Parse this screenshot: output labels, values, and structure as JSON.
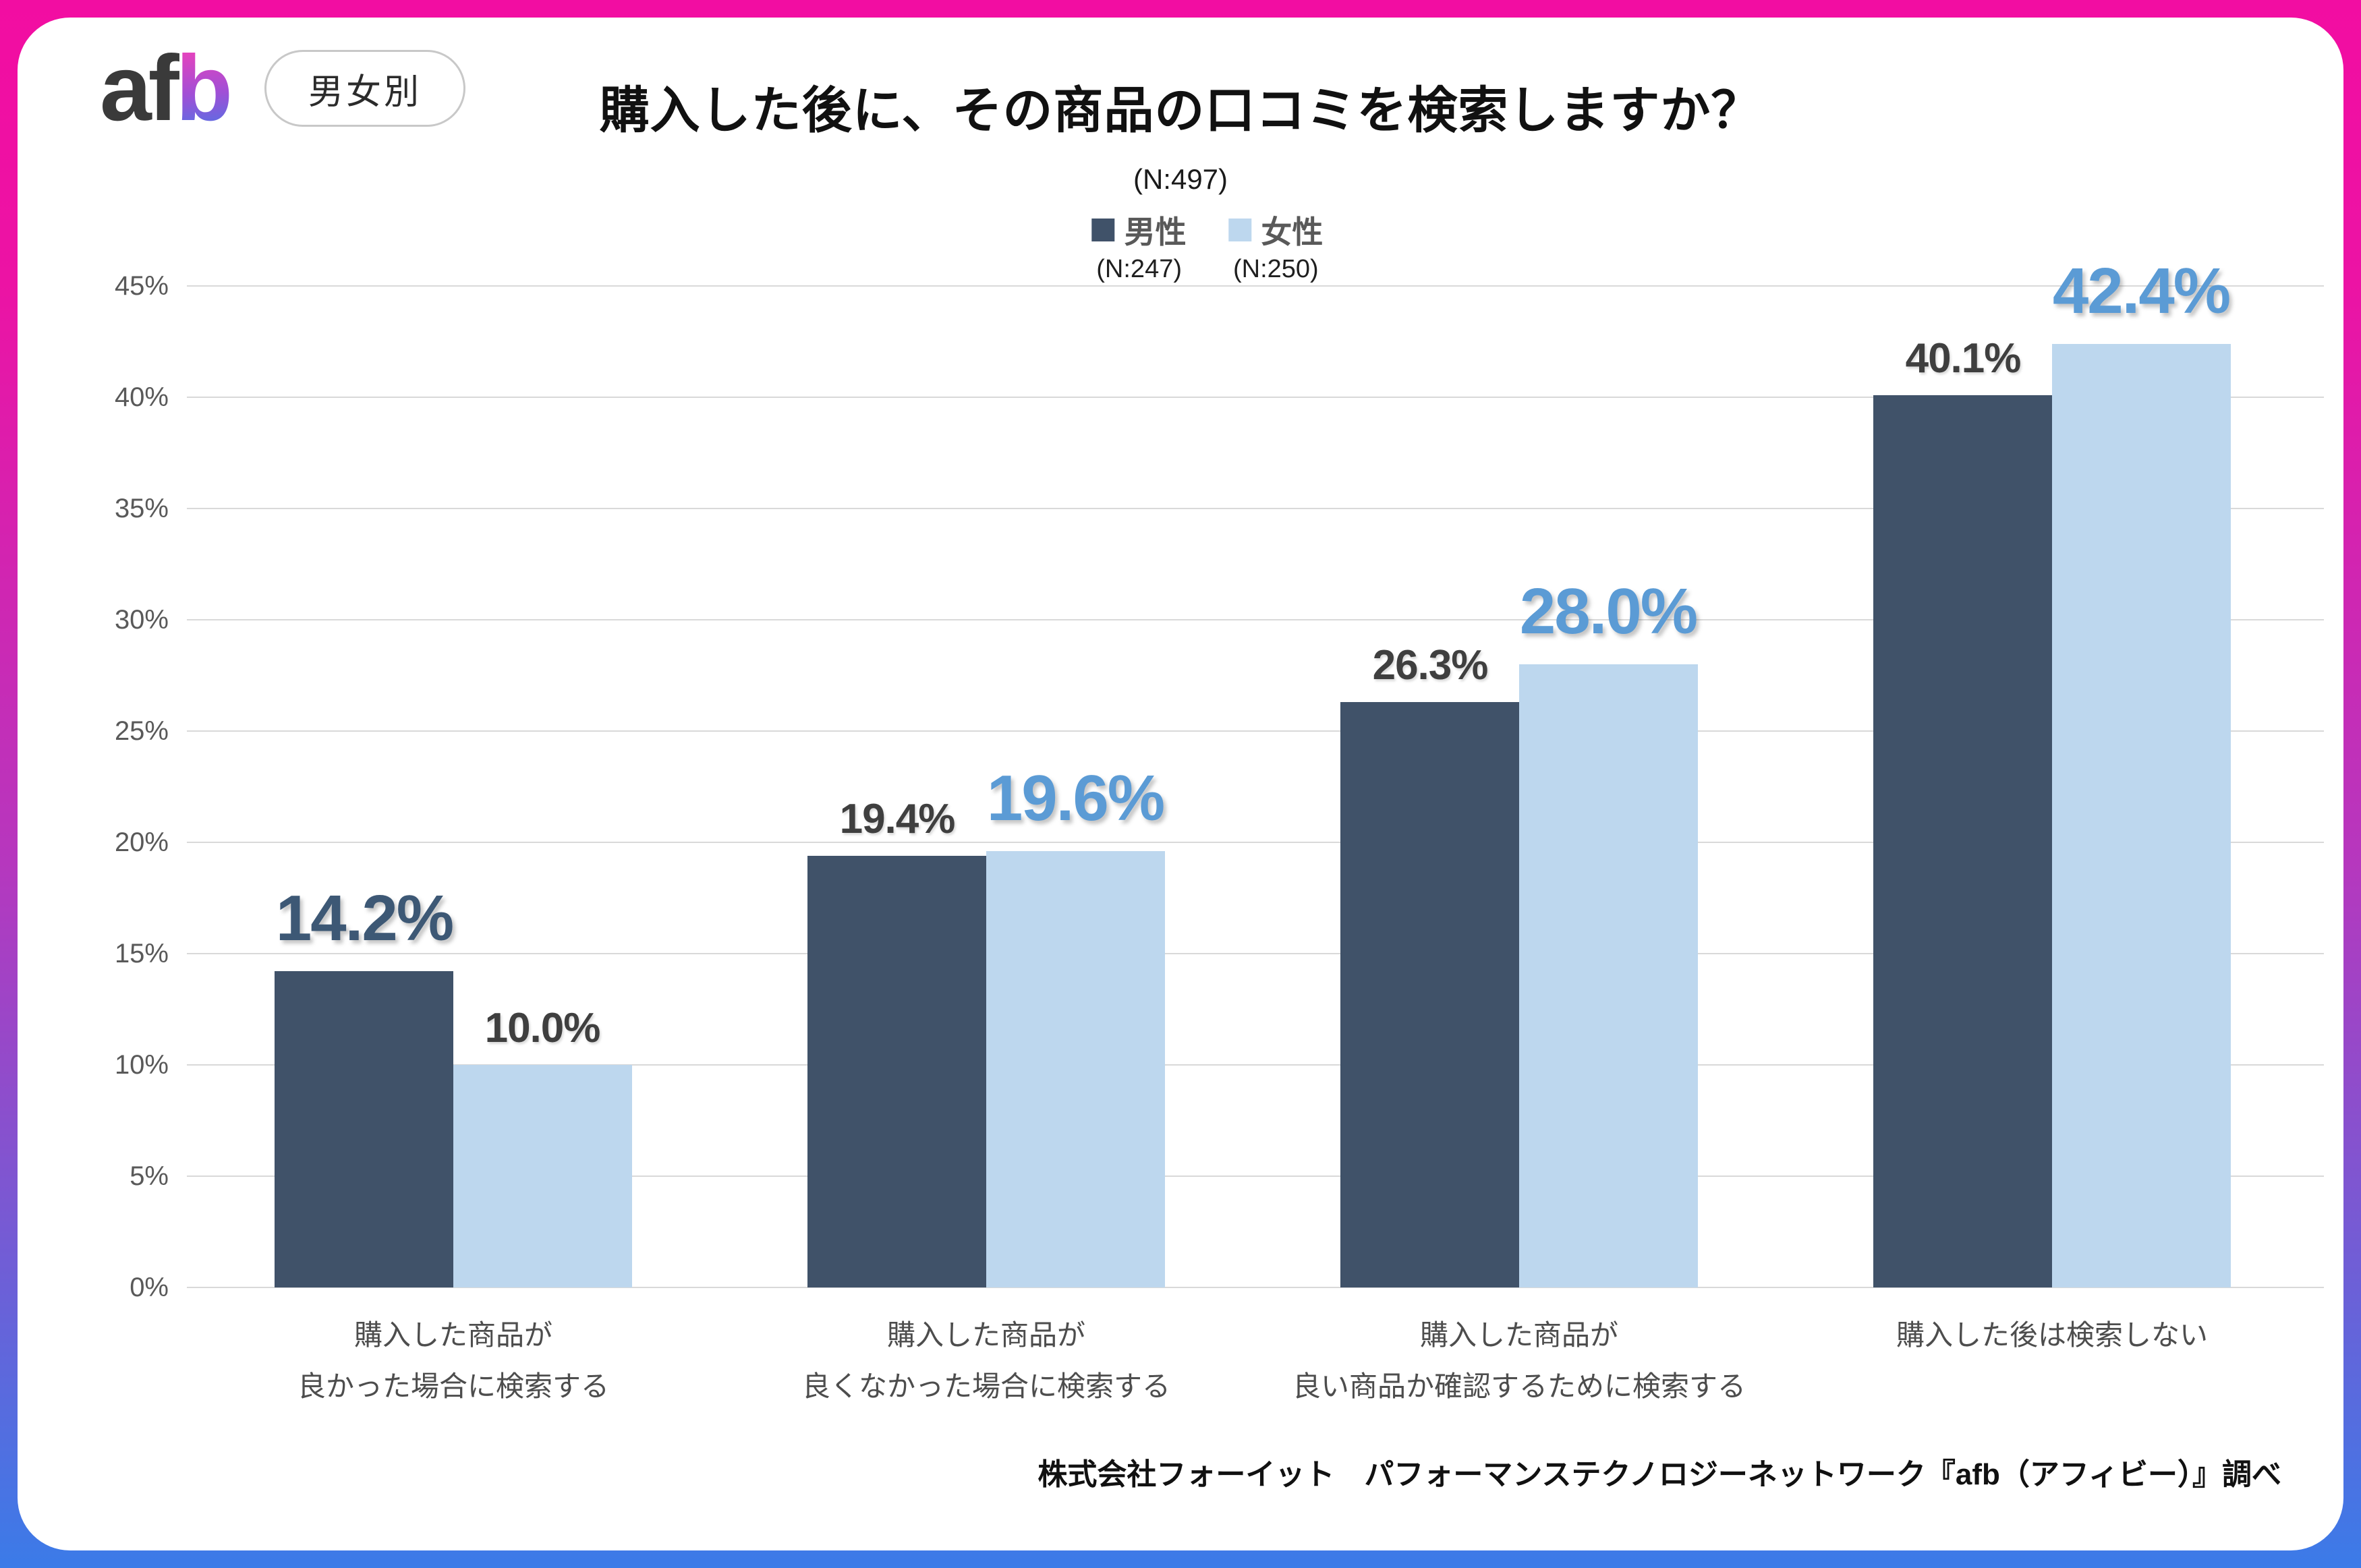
{
  "brand": {
    "logo_text_dark": "af",
    "logo_text_accent": "b"
  },
  "badge_label": "男女別",
  "header": {
    "title": "購入した後に、その商品の口コミを検索しますか？",
    "sample_label": "(N:497)"
  },
  "legend": {
    "male": {
      "label": "男性",
      "n_label": "(N:247)"
    },
    "female": {
      "label": "女性",
      "n_label": "(N:250)"
    }
  },
  "colors": {
    "male_bar": "#405269",
    "female_bar": "#BDD7EE",
    "male_value_emph": "#3D5875",
    "female_value_emph": "#5B9BD5",
    "normal_value": "#3F3F3F",
    "gridline": "#D9D9D9",
    "frame_top": "#F20DA2",
    "frame_bottom": "#3B7BE8"
  },
  "chart_data": {
    "type": "bar",
    "title": "購入した後に、その商品の口コミを検索しますか？",
    "sample_n": 497,
    "categories": [
      "購入した商品が 良かった場合に検索する",
      "購入した商品が 良くなかった場合に検索する",
      "購入した商品が 良い商品か確認するために検索する",
      "購入した後は検索しない"
    ],
    "categories_lines": [
      [
        "購入した商品が",
        "良かった場合に検索する"
      ],
      [
        "購入した商品が",
        "良くなかった場合に検索する"
      ],
      [
        "購入した商品が",
        "良い商品か確認するために検索する"
      ],
      [
        "購入した後は検索しない"
      ]
    ],
    "series": [
      {
        "name": "男性",
        "n": 247,
        "values": [
          14.2,
          19.4,
          26.3,
          40.1
        ]
      },
      {
        "name": "女性",
        "n": 250,
        "values": [
          10.0,
          19.6,
          28.0,
          42.4
        ]
      }
    ],
    "emphasized_series_per_category": [
      "男性",
      "女性",
      "女性",
      "女性"
    ],
    "value_suffix": "%",
    "ylim": [
      0,
      45
    ],
    "ytick_step": 5,
    "ytick_labels": [
      "0%",
      "5%",
      "10%",
      "15%",
      "20%",
      "25%",
      "30%",
      "35%",
      "40%",
      "45%"
    ],
    "grid": true,
    "legend_position": "top"
  },
  "footer_credit": "株式会社フォーイット　パフォーマンステクノロジーネットワーク『afb（アフィビー）』調べ"
}
